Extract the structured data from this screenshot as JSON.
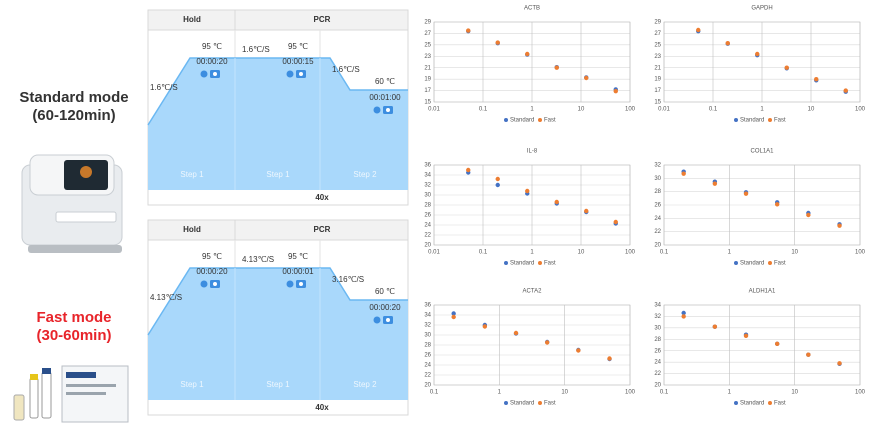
{
  "modes": [
    {
      "name": "Standard mode",
      "duration": "(60-120min)"
    },
    {
      "name": "Fast mode",
      "duration": "(30-60min)"
    }
  ],
  "protocols": [
    {
      "header": [
        "Hold",
        "PCR"
      ],
      "labels": [
        "1.6℃/S",
        "95 ℃",
        "00:00:20",
        "1.6℃/S",
        "95 ℃",
        "00:00:15",
        "1.6℃/S",
        "60 ℃",
        "00:01:00"
      ],
      "steps": [
        "Step 1",
        "Step 1",
        "Step 2"
      ],
      "cycles": "40x"
    },
    {
      "header": [
        "Hold",
        "PCR"
      ],
      "labels": [
        "4.13℃/S",
        "95 ℃",
        "00:00:20",
        "4.13℃/S",
        "95 ℃",
        "00:00:01",
        "3.16℃/S",
        "60 ℃",
        "00:00:20"
      ],
      "steps": [
        "Step 1",
        "Step 1",
        "Step 2"
      ],
      "cycles": "40x"
    }
  ],
  "chart_data": [
    {
      "type": "scatter",
      "title": "ACTB",
      "x": [
        0.05,
        0.2,
        0.8,
        3.2,
        12.8,
        51.2
      ],
      "xscale": "log",
      "grid": true,
      "legend": "bottom",
      "series": [
        {
          "name": "Standard",
          "color": "#4472c4",
          "values": [
            27.4,
            25.3,
            23.3,
            21.1,
            19.3,
            17.2
          ]
        },
        {
          "name": "Fast",
          "color": "#ed7d31",
          "values": [
            27.5,
            25.4,
            23.4,
            21.0,
            19.2,
            16.9
          ]
        }
      ],
      "xlim": [
        0.01,
        100
      ],
      "xticks": [
        0.01,
        0.1,
        1,
        10,
        100
      ],
      "ylim": [
        15,
        29
      ],
      "yticks": [
        15,
        17,
        19,
        21,
        23,
        25,
        27,
        29
      ]
    },
    {
      "type": "scatter",
      "title": "GAPDH",
      "x": [
        0.05,
        0.2,
        0.8,
        3.2,
        12.8,
        51.2
      ],
      "xscale": "log",
      "grid": true,
      "legend": "bottom",
      "series": [
        {
          "name": "Standard",
          "color": "#4472c4",
          "values": [
            27.4,
            25.2,
            23.2,
            20.9,
            18.8,
            16.8
          ]
        },
        {
          "name": "Fast",
          "color": "#ed7d31",
          "values": [
            27.6,
            25.3,
            23.4,
            21.0,
            19.0,
            17.0
          ]
        }
      ],
      "xlim": [
        0.01,
        100
      ],
      "xticks": [
        0.01,
        0.1,
        1,
        10,
        100
      ],
      "ylim": [
        15,
        29
      ],
      "yticks": [
        15,
        17,
        19,
        21,
        23,
        25,
        27,
        29
      ]
    },
    {
      "type": "scatter",
      "title": "IL-8",
      "x": [
        0.05,
        0.2,
        0.8,
        3.2,
        12.8,
        51.2
      ],
      "xscale": "log",
      "grid": true,
      "legend": "bottom",
      "series": [
        {
          "name": "Standard",
          "color": "#4472c4",
          "values": [
            34.5,
            32.0,
            30.3,
            28.3,
            26.6,
            24.3
          ]
        },
        {
          "name": "Fast",
          "color": "#ed7d31",
          "values": [
            35.0,
            33.2,
            30.8,
            28.6,
            26.8,
            24.6
          ]
        }
      ],
      "xlim": [
        0.01,
        100
      ],
      "xticks": [
        0.01,
        0.1,
        1,
        10,
        100
      ],
      "ylim": [
        20,
        36
      ],
      "yticks": [
        20,
        22,
        24,
        26,
        28,
        30,
        32,
        34,
        36
      ]
    },
    {
      "type": "scatter",
      "title": "COL1A1",
      "x": [
        0.2,
        0.6,
        1.8,
        5.4,
        16.2,
        48.6
      ],
      "xscale": "log",
      "grid": true,
      "legend": "bottom",
      "series": [
        {
          "name": "Standard",
          "color": "#4472c4",
          "values": [
            31.0,
            29.5,
            27.9,
            26.4,
            24.8,
            23.1
          ]
        },
        {
          "name": "Fast",
          "color": "#ed7d31",
          "values": [
            30.7,
            29.2,
            27.7,
            26.1,
            24.5,
            22.9
          ]
        }
      ],
      "xlim": [
        0.1,
        100
      ],
      "xticks": [
        0.1,
        1,
        10,
        100
      ],
      "ylim": [
        20,
        32
      ],
      "yticks": [
        20,
        22,
        24,
        26,
        28,
        30,
        32
      ]
    },
    {
      "type": "scatter",
      "title": "ACTA2",
      "x": [
        0.2,
        0.6,
        1.8,
        5.4,
        16.2,
        48.6
      ],
      "xscale": "log",
      "grid": true,
      "legend": "bottom",
      "series": [
        {
          "name": "Standard",
          "color": "#4472c4",
          "values": [
            34.3,
            32.0,
            30.3,
            28.6,
            27.0,
            25.2
          ]
        },
        {
          "name": "Fast",
          "color": "#ed7d31",
          "values": [
            33.6,
            31.7,
            30.4,
            28.5,
            26.9,
            25.3
          ]
        }
      ],
      "xlim": [
        0.1,
        100
      ],
      "xticks": [
        0.1,
        1,
        10,
        100
      ],
      "ylim": [
        20,
        36
      ],
      "yticks": [
        20,
        22,
        24,
        26,
        28,
        30,
        32,
        34,
        36
      ]
    },
    {
      "type": "scatter",
      "title": "ALDH1A1",
      "x": [
        0.2,
        0.6,
        1.8,
        5.4,
        16.2,
        48.6
      ],
      "xscale": "log",
      "grid": true,
      "legend": "bottom",
      "series": [
        {
          "name": "Standard",
          "color": "#4472c4",
          "values": [
            32.6,
            30.2,
            28.8,
            27.2,
            25.3,
            23.7
          ]
        },
        {
          "name": "Fast",
          "color": "#ed7d31",
          "values": [
            32.0,
            30.2,
            28.6,
            27.2,
            25.3,
            23.8
          ]
        }
      ],
      "xlim": [
        0.1,
        100
      ],
      "xticks": [
        0.1,
        1,
        10,
        100
      ],
      "ylim": [
        20,
        34
      ],
      "yticks": [
        20,
        22,
        24,
        26,
        28,
        30,
        32,
        34
      ]
    }
  ]
}
